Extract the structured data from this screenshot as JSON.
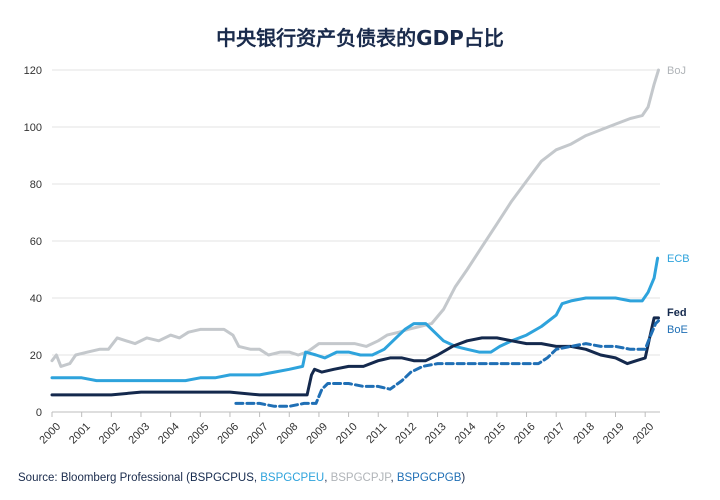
{
  "chart_data": {
    "type": "line",
    "title": "中央银行资产负债表的GDP占比",
    "xlabel": "",
    "ylabel": "",
    "xlim": [
      2000,
      2020.5
    ],
    "ylim": [
      0,
      120
    ],
    "x_ticks": [
      "2000",
      "2001",
      "2002",
      "2003",
      "2004",
      "2005",
      "2006",
      "2007",
      "2008",
      "2009",
      "2010",
      "2011",
      "2012",
      "2013",
      "2014",
      "2015",
      "2016",
      "2017",
      "2018",
      "2019",
      "2020"
    ],
    "y_ticks": [
      0,
      20,
      40,
      60,
      80,
      100,
      120
    ],
    "grid": "horizontal",
    "series": [
      {
        "name": "BoJ",
        "color": "#c4c8cc",
        "dashed": false,
        "points": [
          [
            2000,
            18
          ],
          [
            2000.15,
            20
          ],
          [
            2000.3,
            16
          ],
          [
            2000.6,
            17
          ],
          [
            2000.8,
            20
          ],
          [
            2001.2,
            21
          ],
          [
            2001.6,
            22
          ],
          [
            2001.9,
            22
          ],
          [
            2002.2,
            26
          ],
          [
            2002.5,
            25
          ],
          [
            2002.8,
            24
          ],
          [
            2003.2,
            26
          ],
          [
            2003.6,
            25
          ],
          [
            2004,
            27
          ],
          [
            2004.3,
            26
          ],
          [
            2004.6,
            28
          ],
          [
            2005,
            29
          ],
          [
            2005.4,
            29
          ],
          [
            2005.8,
            29
          ],
          [
            2006.1,
            27
          ],
          [
            2006.3,
            23
          ],
          [
            2006.7,
            22
          ],
          [
            2007,
            22
          ],
          [
            2007.3,
            20
          ],
          [
            2007.7,
            21
          ],
          [
            2008,
            21
          ],
          [
            2008.3,
            20
          ],
          [
            2008.6,
            21
          ],
          [
            2009,
            24
          ],
          [
            2009.4,
            24
          ],
          [
            2009.8,
            24
          ],
          [
            2010.2,
            24
          ],
          [
            2010.6,
            23
          ],
          [
            2011,
            25
          ],
          [
            2011.3,
            27
          ],
          [
            2011.7,
            28
          ],
          [
            2012,
            29
          ],
          [
            2012.4,
            30
          ],
          [
            2012.8,
            31
          ],
          [
            2013.2,
            36
          ],
          [
            2013.6,
            44
          ],
          [
            2014,
            50
          ],
          [
            2014.5,
            58
          ],
          [
            2015,
            66
          ],
          [
            2015.5,
            74
          ],
          [
            2016,
            81
          ],
          [
            2016.5,
            88
          ],
          [
            2017,
            92
          ],
          [
            2017.5,
            94
          ],
          [
            2018,
            97
          ],
          [
            2018.5,
            99
          ],
          [
            2019,
            101
          ],
          [
            2019.5,
            103
          ],
          [
            2019.9,
            104
          ],
          [
            2020.1,
            107
          ],
          [
            2020.3,
            115
          ],
          [
            2020.45,
            120
          ]
        ]
      },
      {
        "name": "ECB",
        "color": "#2ea3dc",
        "dashed": false,
        "points": [
          [
            2000,
            12
          ],
          [
            2000.5,
            12
          ],
          [
            2001,
            12
          ],
          [
            2001.5,
            11
          ],
          [
            2002,
            11
          ],
          [
            2002.5,
            11
          ],
          [
            2003,
            11
          ],
          [
            2003.5,
            11
          ],
          [
            2004,
            11
          ],
          [
            2004.5,
            11
          ],
          [
            2005,
            12
          ],
          [
            2005.5,
            12
          ],
          [
            2006,
            13
          ],
          [
            2006.5,
            13
          ],
          [
            2007,
            13
          ],
          [
            2007.5,
            14
          ],
          [
            2008,
            15
          ],
          [
            2008.45,
            16
          ],
          [
            2008.55,
            21
          ],
          [
            2008.9,
            20
          ],
          [
            2009.2,
            19
          ],
          [
            2009.6,
            21
          ],
          [
            2010,
            21
          ],
          [
            2010.4,
            20
          ],
          [
            2010.8,
            20
          ],
          [
            2011.2,
            22
          ],
          [
            2011.6,
            26
          ],
          [
            2011.9,
            29
          ],
          [
            2012.2,
            31
          ],
          [
            2012.6,
            31
          ],
          [
            2012.9,
            28
          ],
          [
            2013.2,
            25
          ],
          [
            2013.6,
            23
          ],
          [
            2014,
            22
          ],
          [
            2014.4,
            21
          ],
          [
            2014.8,
            21
          ],
          [
            2015.1,
            23
          ],
          [
            2015.5,
            25
          ],
          [
            2016,
            27
          ],
          [
            2016.5,
            30
          ],
          [
            2017,
            34
          ],
          [
            2017.2,
            38
          ],
          [
            2017.5,
            39
          ],
          [
            2018,
            40
          ],
          [
            2018.5,
            40
          ],
          [
            2019,
            40
          ],
          [
            2019.5,
            39
          ],
          [
            2019.9,
            39
          ],
          [
            2020.1,
            42
          ],
          [
            2020.3,
            47
          ],
          [
            2020.42,
            54
          ]
        ]
      },
      {
        "name": "Fed",
        "color": "#14294d",
        "dashed": false,
        "points": [
          [
            2000,
            6
          ],
          [
            2001,
            6
          ],
          [
            2001.6,
            6
          ],
          [
            2002,
            6
          ],
          [
            2003,
            7
          ],
          [
            2004,
            7
          ],
          [
            2005,
            7
          ],
          [
            2006,
            7
          ],
          [
            2007,
            6
          ],
          [
            2007.5,
            6
          ],
          [
            2008,
            6
          ],
          [
            2008.6,
            6
          ],
          [
            2008.75,
            13
          ],
          [
            2008.85,
            15
          ],
          [
            2009.1,
            14
          ],
          [
            2009.5,
            15
          ],
          [
            2010,
            16
          ],
          [
            2010.5,
            16
          ],
          [
            2011,
            18
          ],
          [
            2011.4,
            19
          ],
          [
            2011.8,
            19
          ],
          [
            2012.2,
            18
          ],
          [
            2012.6,
            18
          ],
          [
            2013,
            20
          ],
          [
            2013.5,
            23
          ],
          [
            2014,
            25
          ],
          [
            2014.5,
            26
          ],
          [
            2015,
            26
          ],
          [
            2015.5,
            25
          ],
          [
            2016,
            24
          ],
          [
            2016.5,
            24
          ],
          [
            2017,
            23
          ],
          [
            2017.5,
            23
          ],
          [
            2018,
            22
          ],
          [
            2018.5,
            20
          ],
          [
            2019,
            19
          ],
          [
            2019.4,
            17
          ],
          [
            2019.7,
            18
          ],
          [
            2020,
            19
          ],
          [
            2020.15,
            26
          ],
          [
            2020.3,
            33
          ],
          [
            2020.45,
            33
          ]
        ]
      },
      {
        "name": "BoE",
        "color": "#1f6fb5",
        "dashed": true,
        "points": [
          [
            2006.2,
            3
          ],
          [
            2006.6,
            3
          ],
          [
            2007,
            3
          ],
          [
            2007.5,
            2
          ],
          [
            2008,
            2
          ],
          [
            2008.5,
            3
          ],
          [
            2008.9,
            3
          ],
          [
            2009.1,
            8
          ],
          [
            2009.3,
            10
          ],
          [
            2009.6,
            10
          ],
          [
            2010,
            10
          ],
          [
            2010.5,
            9
          ],
          [
            2011,
            9
          ],
          [
            2011.4,
            8
          ],
          [
            2011.8,
            11
          ],
          [
            2012.1,
            14
          ],
          [
            2012.5,
            16
          ],
          [
            2013,
            17
          ],
          [
            2013.5,
            17
          ],
          [
            2014,
            17
          ],
          [
            2014.5,
            17
          ],
          [
            2015,
            17
          ],
          [
            2015.5,
            17
          ],
          [
            2016,
            17
          ],
          [
            2016.4,
            17
          ],
          [
            2016.7,
            19
          ],
          [
            2017,
            22
          ],
          [
            2017.5,
            23
          ],
          [
            2018,
            24
          ],
          [
            2018.5,
            23
          ],
          [
            2019,
            23
          ],
          [
            2019.5,
            22
          ],
          [
            2020,
            22
          ],
          [
            2020.15,
            26
          ],
          [
            2020.35,
            31
          ],
          [
            2020.45,
            32
          ]
        ]
      }
    ]
  },
  "series_labels": {
    "boj": "BoJ",
    "ecb": "ECB",
    "fed": "Fed",
    "boe": "BoE"
  },
  "source": {
    "prefix": "Source: Bloomberg Professional (",
    "fed_code": "BSPGCPUS",
    "sep1": ", ",
    "ecb_code": "BSPGCPEU",
    "sep2": ", ",
    "boj_code": "BSPGCPJP",
    "sep3": ", ",
    "boe_code": "BSPGCPGB",
    "suffix": ")"
  }
}
